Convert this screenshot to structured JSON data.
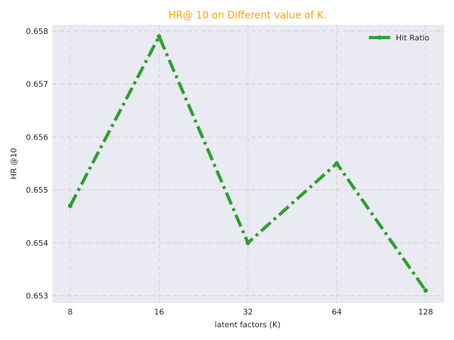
{
  "chart_data": {
    "type": "line",
    "title": "HR@ 10 on Different value of K.",
    "xlabel": "latent factors (K)",
    "ylabel": "HR @10",
    "categories": [
      "8",
      "16",
      "32",
      "64",
      "128"
    ],
    "series": [
      {
        "name": "Hit Ratio",
        "values": [
          0.6547,
          0.6579,
          0.654,
          0.6555,
          0.6531
        ]
      }
    ],
    "yticks": [
      "0.653",
      "0.654",
      "0.655",
      "0.656",
      "0.657",
      "0.658"
    ],
    "ylim": [
      0.65286,
      0.65812
    ],
    "grid": true,
    "legend_position": "top-right"
  },
  "colors": {
    "title": "#FFA500",
    "series": "#2CA02C",
    "plot_background": "#EAEAF2",
    "grid": "#C8C8C8"
  }
}
